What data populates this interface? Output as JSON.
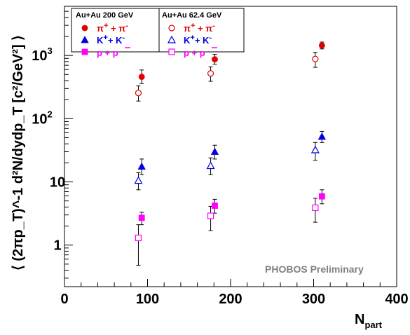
{
  "chart_data": {
    "type": "scatter",
    "xlabel": {
      "main": "N",
      "sub": "part"
    },
    "ylabel": "⟨ (2πp_T)^-1 d²N/dydp_T [c²/GeV²] ⟩",
    "xlim": [
      0,
      400
    ],
    "ylim": [
      0.22,
      6000
    ],
    "yscale": "log",
    "grid": false,
    "legend_placement": "top-left",
    "x_ticks": [
      "0",
      "100",
      "200",
      "300",
      "400"
    ],
    "y_ticks": [
      {
        "label": "1",
        "value": 1
      },
      {
        "label": "10",
        "value": 10
      },
      {
        "label": "10",
        "exp": "2",
        "value": 100
      },
      {
        "label": "10",
        "exp": "3",
        "value": 1000
      }
    ],
    "watermark": "PHOBOS Preliminary",
    "legend_titles": [
      "Au+Au 200 GeV",
      "Au+Au 62.4 GeV"
    ],
    "series": [
      {
        "key": "pi200",
        "particle": "pi",
        "energy": "200 GeV",
        "marker": "circle",
        "filled": true,
        "color": "#e00000",
        "points": [
          {
            "x": 93,
            "y": 460,
            "lo": 360,
            "hi": 590
          },
          {
            "x": 181,
            "y": 870,
            "lo": 730,
            "hi": 1040
          },
          {
            "x": 310,
            "y": 1440,
            "lo": 1270,
            "hi": 1630
          }
        ]
      },
      {
        "key": "pi62",
        "particle": "pi",
        "energy": "62.4 GeV",
        "marker": "circle",
        "filled": false,
        "color": "#e00000",
        "points": [
          {
            "x": 89,
            "y": 255,
            "lo": 190,
            "hi": 330
          },
          {
            "x": 176,
            "y": 520,
            "lo": 390,
            "hi": 660
          },
          {
            "x": 302,
            "y": 880,
            "lo": 650,
            "hi": 1120
          }
        ]
      },
      {
        "key": "k200",
        "particle": "K",
        "energy": "200 GeV",
        "marker": "triangle",
        "filled": true,
        "color": "#0000e0",
        "points": [
          {
            "x": 93,
            "y": 17.5,
            "lo": 13,
            "hi": 23
          },
          {
            "x": 181,
            "y": 30,
            "lo": 23,
            "hi": 38
          },
          {
            "x": 310,
            "y": 52,
            "lo": 42,
            "hi": 63
          }
        ]
      },
      {
        "key": "k62",
        "particle": "K",
        "energy": "62.4 GeV",
        "marker": "triangle",
        "filled": false,
        "color": "#0000e0",
        "points": [
          {
            "x": 89,
            "y": 10.5,
            "lo": 7.5,
            "hi": 14
          },
          {
            "x": 176,
            "y": 18,
            "lo": 13,
            "hi": 24
          },
          {
            "x": 302,
            "y": 32,
            "lo": 22,
            "hi": 42
          }
        ]
      },
      {
        "key": "p200",
        "particle": "p",
        "energy": "200 GeV",
        "marker": "square",
        "filled": true,
        "color": "#ff00ff",
        "points": [
          {
            "x": 93,
            "y": 2.7,
            "lo": 2.1,
            "hi": 3.3
          },
          {
            "x": 181,
            "y": 4.2,
            "lo": 3.2,
            "hi": 5.3
          },
          {
            "x": 310,
            "y": 5.9,
            "lo": 4.5,
            "hi": 7.5
          }
        ]
      },
      {
        "key": "p62",
        "particle": "p",
        "energy": "62.4 GeV",
        "marker": "square",
        "filled": false,
        "color": "#ff00ff",
        "points": [
          {
            "x": 89,
            "y": 1.3,
            "lo": 0.48,
            "hi": 2.1
          },
          {
            "x": 176,
            "y": 2.9,
            "lo": 1.7,
            "hi": 4.1
          },
          {
            "x": 302,
            "y": 3.9,
            "lo": 2.3,
            "hi": 5.5
          }
        ]
      }
    ]
  }
}
